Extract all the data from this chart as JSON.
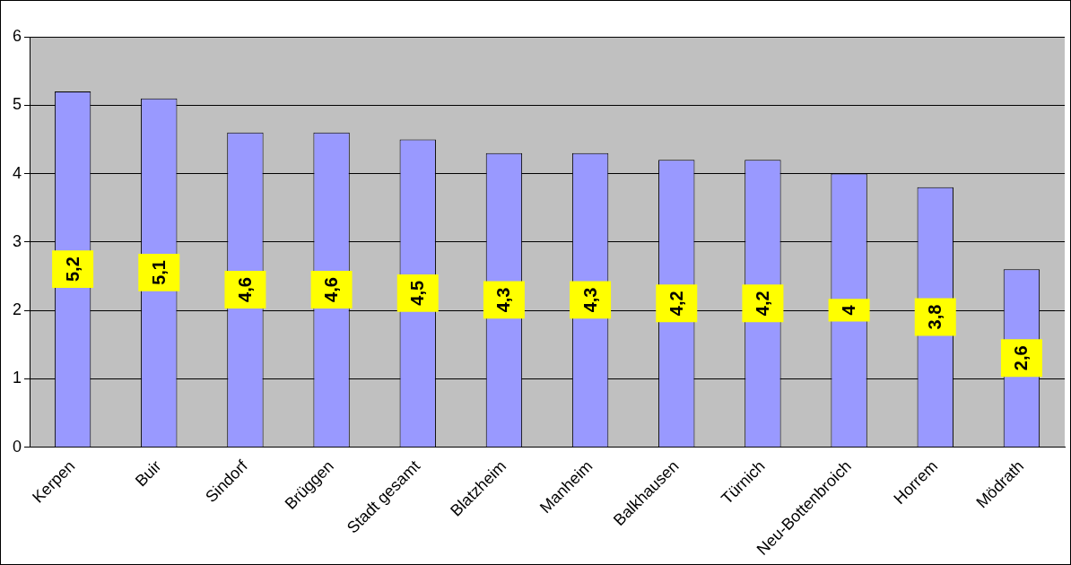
{
  "chart_data": {
    "type": "bar",
    "categories": [
      "Kerpen",
      "Buir",
      "Sindorf",
      "Brüggen",
      "Stadt gesamt",
      "Blatzheim",
      "Manheim",
      "Balkhausen",
      "Türnich",
      "Neu-Bottenbroich",
      "Horrem",
      "Mödrath"
    ],
    "values": [
      5.2,
      5.1,
      4.6,
      4.6,
      4.5,
      4.3,
      4.3,
      4.2,
      4.2,
      4.0,
      3.8,
      2.6
    ],
    "value_labels": [
      "5,2",
      "5,1",
      "4,6",
      "4,6",
      "4,5",
      "4,3",
      "4,3",
      "4,2",
      "4,2",
      "4",
      "3,8",
      "2,6"
    ],
    "color": "#9999ff",
    "ylim": [
      0,
      6
    ],
    "yticks": [
      0,
      1,
      2,
      3,
      4,
      5,
      6
    ],
    "grid": "y",
    "legend": false
  }
}
